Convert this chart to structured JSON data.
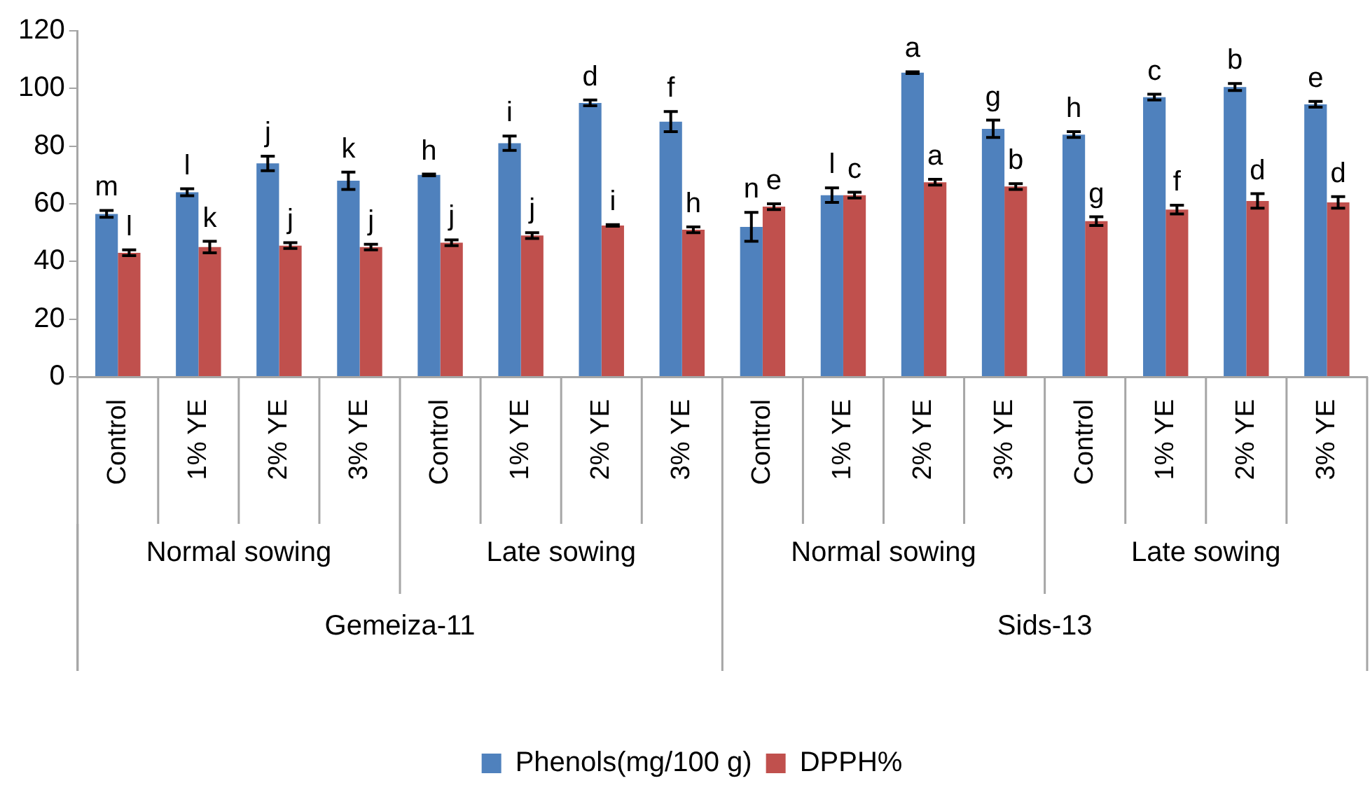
{
  "chart_data": {
    "type": "bar",
    "categories": [
      "Control",
      "1% YE",
      "2% YE",
      "3% YE",
      "Control",
      "1% YE",
      "2% YE",
      "3% YE",
      "Control",
      "1% YE",
      "2% YE",
      "3% YE",
      "Control",
      "1% YE",
      "2% YE",
      "3% YE"
    ],
    "series": [
      {
        "name": "Phenols(mg/100 g)",
        "color": "#4f81bd",
        "values": [
          56.5,
          64,
          74,
          68,
          70,
          81,
          95,
          88.5,
          52,
          63,
          105.5,
          86,
          84,
          97,
          100.5,
          94.5
        ],
        "errors": [
          1.2,
          1.2,
          2.5,
          3,
          0.3,
          2.5,
          1,
          3.5,
          5,
          2.5,
          0.3,
          3,
          1,
          1,
          1.2,
          1
        ],
        "value_labels": [
          "m",
          "l",
          "j",
          "k",
          "h",
          "i",
          "d",
          "f",
          "n",
          "l",
          "a",
          "g",
          "h",
          "c",
          "b",
          "e"
        ]
      },
      {
        "name": "DPPH%",
        "color": "#c0504d",
        "values": [
          43,
          45,
          45.5,
          45,
          46.5,
          49,
          52.5,
          51,
          59,
          63,
          67.5,
          66,
          54,
          58,
          61,
          60.5
        ],
        "errors": [
          1,
          2,
          1,
          1,
          1,
          1,
          0.3,
          1,
          1,
          1,
          1,
          1,
          1.5,
          1.5,
          2.5,
          2
        ],
        "value_labels": [
          "l",
          "k",
          "j",
          "j",
          "j",
          "j",
          "i",
          "h",
          "e",
          "c",
          "a",
          "b",
          "g",
          "f",
          "d",
          "d"
        ]
      }
    ],
    "annotations": [
      "Normal sowing",
      "Late sowing",
      "Normal sowing",
      "Late sowing",
      "Gemeiza-11",
      "Sids-13"
    ],
    "ylim": [
      0,
      120
    ],
    "yticks": [
      0,
      20,
      40,
      60,
      80,
      100,
      120
    ],
    "grid": false,
    "legend": "bottom"
  }
}
